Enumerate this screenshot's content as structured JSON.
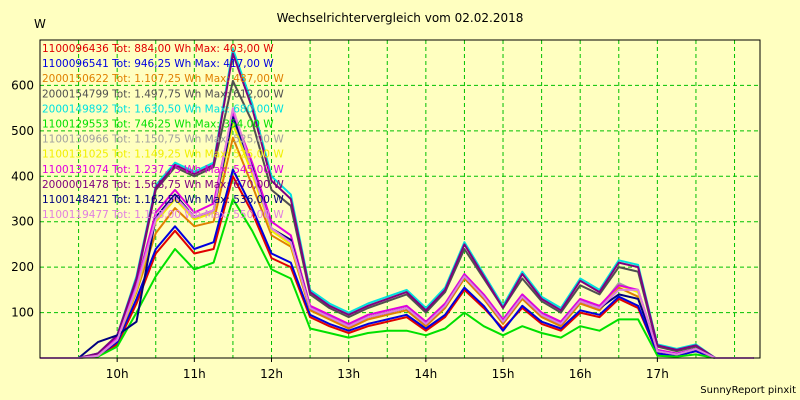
{
  "chart_data": {
    "type": "line",
    "title": "Wechselrichtervergleich vom 02.02.2018",
    "ylabel": "W",
    "xlabel": "",
    "ylim": [
      0,
      700
    ],
    "yticks": [
      100,
      200,
      300,
      400,
      500,
      600
    ],
    "xlim": [
      9.0,
      18.33
    ],
    "xticks": [
      {
        "value": 10,
        "label": "10h"
      },
      {
        "value": 11,
        "label": "11h"
      },
      {
        "value": 12,
        "label": "12h"
      },
      {
        "value": 13,
        "label": "13h"
      },
      {
        "value": 14,
        "label": "14h"
      },
      {
        "value": 15,
        "label": "15h"
      },
      {
        "value": 16,
        "label": "16h"
      },
      {
        "value": 17,
        "label": "17h"
      }
    ],
    "grid": true,
    "legend_position": "top-left",
    "x": [
      9.0,
      9.25,
      9.5,
      9.75,
      10.0,
      10.25,
      10.5,
      10.75,
      11.0,
      11.25,
      11.5,
      11.75,
      12.0,
      12.25,
      12.5,
      12.75,
      13.0,
      13.25,
      13.5,
      13.75,
      14.0,
      14.25,
      14.5,
      14.75,
      15.0,
      15.25,
      15.5,
      15.75,
      16.0,
      16.25,
      16.5,
      16.75,
      17.0,
      17.25,
      17.5,
      17.75,
      18.0,
      18.25
    ],
    "series": [
      {
        "name": "1100096436 Tot: 884,00 Wh Max: 403,00 W",
        "color": "#e00000",
        "values": [
          0,
          0,
          0,
          5,
          30,
          120,
          230,
          280,
          230,
          240,
          400,
          320,
          220,
          200,
          90,
          70,
          55,
          70,
          80,
          90,
          60,
          90,
          150,
          110,
          65,
          110,
          75,
          60,
          100,
          90,
          130,
          110,
          10,
          5,
          15,
          0,
          0,
          0
        ]
      },
      {
        "name": "1100096541 Tot: 946,25 Wh Max: 417,00 W",
        "color": "#0000e0",
        "values": [
          0,
          0,
          0,
          5,
          35,
          130,
          240,
          290,
          240,
          255,
          415,
          330,
          230,
          210,
          95,
          75,
          60,
          75,
          85,
          95,
          65,
          95,
          155,
          115,
          60,
          115,
          80,
          65,
          105,
          95,
          135,
          115,
          10,
          5,
          15,
          0,
          0,
          0
        ]
      },
      {
        "name": "2000150622 Tot: 1.107,25 Wh Max: 487,00 W",
        "color": "#e08000",
        "values": [
          0,
          0,
          0,
          5,
          40,
          145,
          275,
          330,
          290,
          300,
          485,
          380,
          270,
          245,
          105,
          85,
          65,
          85,
          95,
          105,
          70,
          110,
          175,
          130,
          75,
          130,
          90,
          70,
          120,
          105,
          155,
          135,
          15,
          8,
          20,
          0,
          0,
          0
        ]
      },
      {
        "name": "2000154799 Tot: 1.497,75 Wh Max: 612,00 W",
        "color": "#505050",
        "values": [
          0,
          0,
          0,
          10,
          45,
          170,
          370,
          420,
          400,
          420,
          610,
          520,
          370,
          335,
          140,
          110,
          90,
          110,
          125,
          140,
          100,
          145,
          240,
          175,
          110,
          175,
          125,
          100,
          160,
          140,
          200,
          190,
          25,
          15,
          25,
          0,
          0,
          0
        ]
      },
      {
        "name": "2000149892 Tot: 1.630,50 Wh Max: 680,00 W",
        "color": "#00e0e0",
        "values": [
          0,
          0,
          0,
          10,
          50,
          180,
          380,
          430,
          410,
          430,
          680,
          560,
          400,
          360,
          150,
          120,
          100,
          120,
          135,
          150,
          110,
          155,
          255,
          185,
          115,
          190,
          135,
          110,
          175,
          150,
          215,
          205,
          30,
          20,
          30,
          0,
          0,
          0
        ]
      },
      {
        "name": "1100129553 Tot: 746,25 Wh Max: 354,00 W",
        "color": "#00e000",
        "values": [
          0,
          0,
          0,
          3,
          25,
          100,
          180,
          240,
          195,
          210,
          350,
          280,
          195,
          175,
          65,
          55,
          45,
          55,
          60,
          60,
          50,
          65,
          100,
          70,
          50,
          70,
          55,
          45,
          70,
          60,
          85,
          85,
          5,
          3,
          8,
          0,
          0,
          0
        ]
      },
      {
        "name": "1100130966 Tot: 1.150,75 Wh Max: 525,00 W",
        "color": "#a0a0a0",
        "values": [
          0,
          0,
          0,
          5,
          40,
          150,
          300,
          350,
          310,
          320,
          520,
          410,
          280,
          255,
          110,
          90,
          70,
          90,
          100,
          110,
          75,
          115,
          180,
          135,
          80,
          135,
          95,
          75,
          125,
          110,
          165,
          145,
          15,
          8,
          20,
          0,
          0,
          0
        ]
      },
      {
        "name": "1100131025 Tot: 1.149,25 Wh Max: 525,00 W",
        "color": "#f0f000",
        "values": [
          0,
          0,
          0,
          5,
          40,
          150,
          300,
          350,
          305,
          320,
          515,
          405,
          280,
          250,
          110,
          90,
          70,
          90,
          100,
          110,
          75,
          115,
          180,
          135,
          80,
          135,
          95,
          75,
          125,
          110,
          160,
          145,
          15,
          8,
          20,
          0,
          0,
          0
        ]
      },
      {
        "name": "1100131074 Tot: 1.237,75 Wh Max: 545,00 W",
        "color": "#e000e0",
        "values": [
          0,
          0,
          0,
          5,
          45,
          160,
          320,
          370,
          320,
          340,
          540,
          430,
          300,
          270,
          115,
          95,
          75,
          95,
          105,
          115,
          80,
          120,
          185,
          140,
          85,
          140,
          100,
          80,
          130,
          115,
          160,
          150,
          18,
          10,
          20,
          0,
          0,
          0
        ]
      },
      {
        "name": "2000001478 Tot: 1.568,75 Wh Max: 670,00 W",
        "color": "#800080",
        "values": [
          0,
          0,
          0,
          10,
          50,
          175,
          375,
          425,
          405,
          425,
          670,
          550,
          390,
          350,
          145,
          115,
          95,
          115,
          130,
          145,
          105,
          150,
          250,
          180,
          110,
          185,
          130,
          105,
          170,
          145,
          210,
          200,
          28,
          18,
          28,
          0,
          0,
          0
        ]
      },
      {
        "name": "1100148421 Tot: 1.162,50 Wh Max: 536,00 W",
        "color": "#000080",
        "values": [
          0,
          0,
          0,
          35,
          50,
          80,
          310,
          360,
          310,
          325,
          530,
          420,
          285,
          260,
          110,
          90,
          70,
          90,
          100,
          110,
          75,
          115,
          180,
          135,
          80,
          135,
          95,
          75,
          125,
          110,
          140,
          130,
          15,
          8,
          20,
          0,
          0,
          0
        ]
      },
      {
        "name": "1100119477 Tot: 1.158,00 Wh Max: 550,00 W",
        "color": "#e080e0",
        "values": [
          0,
          0,
          0,
          5,
          40,
          155,
          305,
          355,
          310,
          325,
          550,
          415,
          285,
          255,
          110,
          90,
          70,
          90,
          100,
          110,
          75,
          115,
          180,
          135,
          80,
          135,
          95,
          75,
          125,
          110,
          150,
          150,
          15,
          8,
          20,
          0,
          0,
          0
        ]
      }
    ]
  },
  "credit": "SunnyReport pinxit"
}
